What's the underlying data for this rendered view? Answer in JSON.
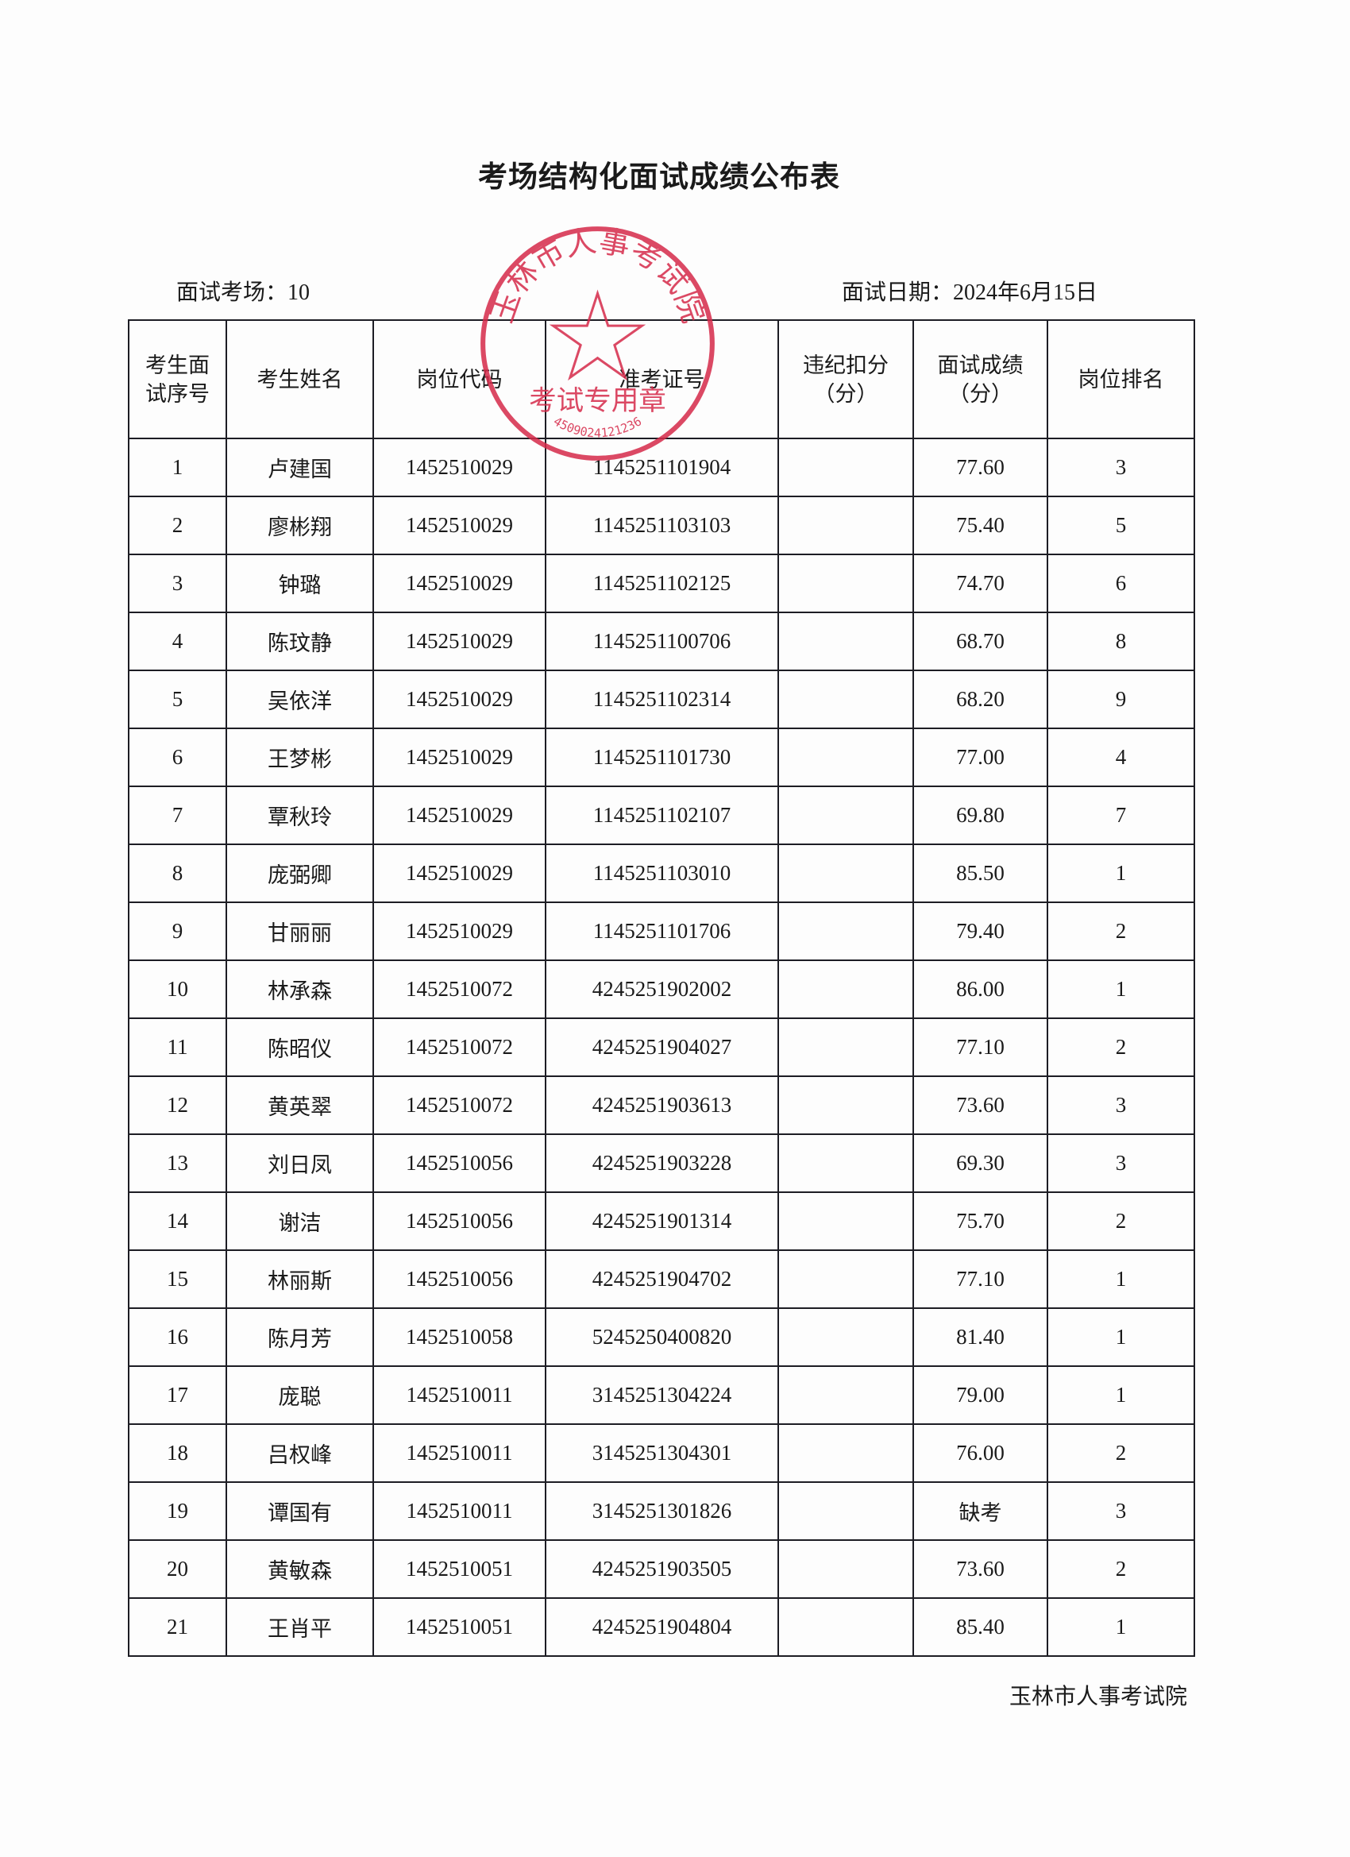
{
  "title": "考场结构化面试成绩公布表",
  "venue_label": "面试考场：10",
  "date_label": "面试日期：2024年6月15日",
  "columns": [
    "考生面\n试序号",
    "考生姓名",
    "岗位代码",
    "准考证号",
    "违纪扣分\n（分）",
    "面试成绩\n（分）",
    "岗位排名"
  ],
  "rows": [
    [
      "1",
      "卢建国",
      "1452510029",
      "1145251101904",
      "",
      "77.60",
      "3"
    ],
    [
      "2",
      "廖彬翔",
      "1452510029",
      "1145251103103",
      "",
      "75.40",
      "5"
    ],
    [
      "3",
      "钟璐",
      "1452510029",
      "1145251102125",
      "",
      "74.70",
      "6"
    ],
    [
      "4",
      "陈玟静",
      "1452510029",
      "1145251100706",
      "",
      "68.70",
      "8"
    ],
    [
      "5",
      "吴依洋",
      "1452510029",
      "1145251102314",
      "",
      "68.20",
      "9"
    ],
    [
      "6",
      "王梦彬",
      "1452510029",
      "1145251101730",
      "",
      "77.00",
      "4"
    ],
    [
      "7",
      "覃秋玲",
      "1452510029",
      "1145251102107",
      "",
      "69.80",
      "7"
    ],
    [
      "8",
      "庞弼卿",
      "1452510029",
      "1145251103010",
      "",
      "85.50",
      "1"
    ],
    [
      "9",
      "甘丽丽",
      "1452510029",
      "1145251101706",
      "",
      "79.40",
      "2"
    ],
    [
      "10",
      "林承森",
      "1452510072",
      "4245251902002",
      "",
      "86.00",
      "1"
    ],
    [
      "11",
      "陈昭仪",
      "1452510072",
      "4245251904027",
      "",
      "77.10",
      "2"
    ],
    [
      "12",
      "黄英翠",
      "1452510072",
      "4245251903613",
      "",
      "73.60",
      "3"
    ],
    [
      "13",
      "刘日凤",
      "1452510056",
      "4245251903228",
      "",
      "69.30",
      "3"
    ],
    [
      "14",
      "谢洁",
      "1452510056",
      "4245251901314",
      "",
      "75.70",
      "2"
    ],
    [
      "15",
      "林丽斯",
      "1452510056",
      "4245251904702",
      "",
      "77.10",
      "1"
    ],
    [
      "16",
      "陈月芳",
      "1452510058",
      "5245250400820",
      "",
      "81.40",
      "1"
    ],
    [
      "17",
      "庞聪",
      "1452510011",
      "3145251304224",
      "",
      "79.00",
      "1"
    ],
    [
      "18",
      "吕权峰",
      "1452510011",
      "3145251304301",
      "",
      "76.00",
      "2"
    ],
    [
      "19",
      "谭国有",
      "1452510011",
      "3145251301826",
      "",
      "缺考",
      "3"
    ],
    [
      "20",
      "黄敏森",
      "1452510051",
      "4245251903505",
      "",
      "73.60",
      "2"
    ],
    [
      "21",
      "王肖平",
      "1452510051",
      "4245251904804",
      "",
      "85.40",
      "1"
    ]
  ],
  "footer": "玉林市人事考试院",
  "seal": {
    "outer_text": "玉林市人事考试院",
    "inner_text": "考试专用章",
    "number": "4509024121236",
    "color": "#d62a4a"
  }
}
